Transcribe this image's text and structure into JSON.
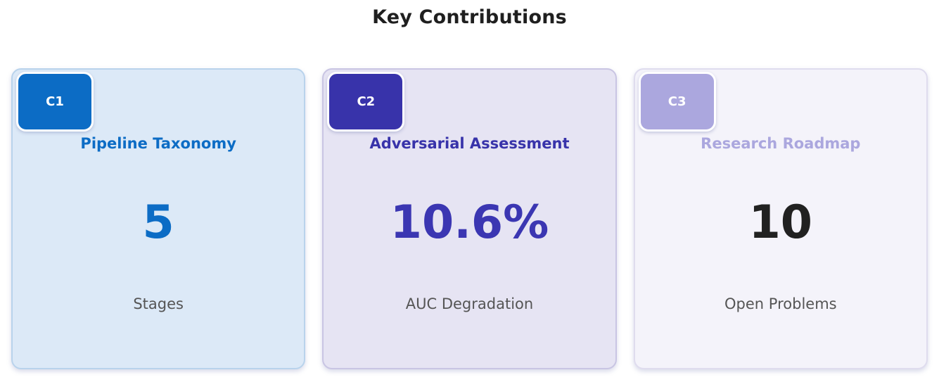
{
  "page": {
    "title": "Key Contributions"
  },
  "cards": [
    {
      "badge": "C1",
      "title": "Pipeline Taxonomy",
      "value": "5",
      "label": "Stages",
      "colors": {
        "bg": "#dce9f7",
        "border": "#b9d3ec",
        "accent": "#0c6cc5",
        "value": "#0c6cc5"
      }
    },
    {
      "badge": "C2",
      "title": "Adversarial Assessment",
      "value": "10.6%",
      "label": "AUC Degradation",
      "colors": {
        "bg": "#e6e4f3",
        "border": "#c9c5e3",
        "accent": "#3833aa",
        "value": "#3b36b2"
      }
    },
    {
      "badge": "C3",
      "title": "Research Roadmap",
      "value": "10",
      "label": "Open Problems",
      "colors": {
        "bg": "#f4f3fa",
        "border": "#dfdcee",
        "accent": "#aba7de",
        "value": "#212121"
      }
    }
  ]
}
